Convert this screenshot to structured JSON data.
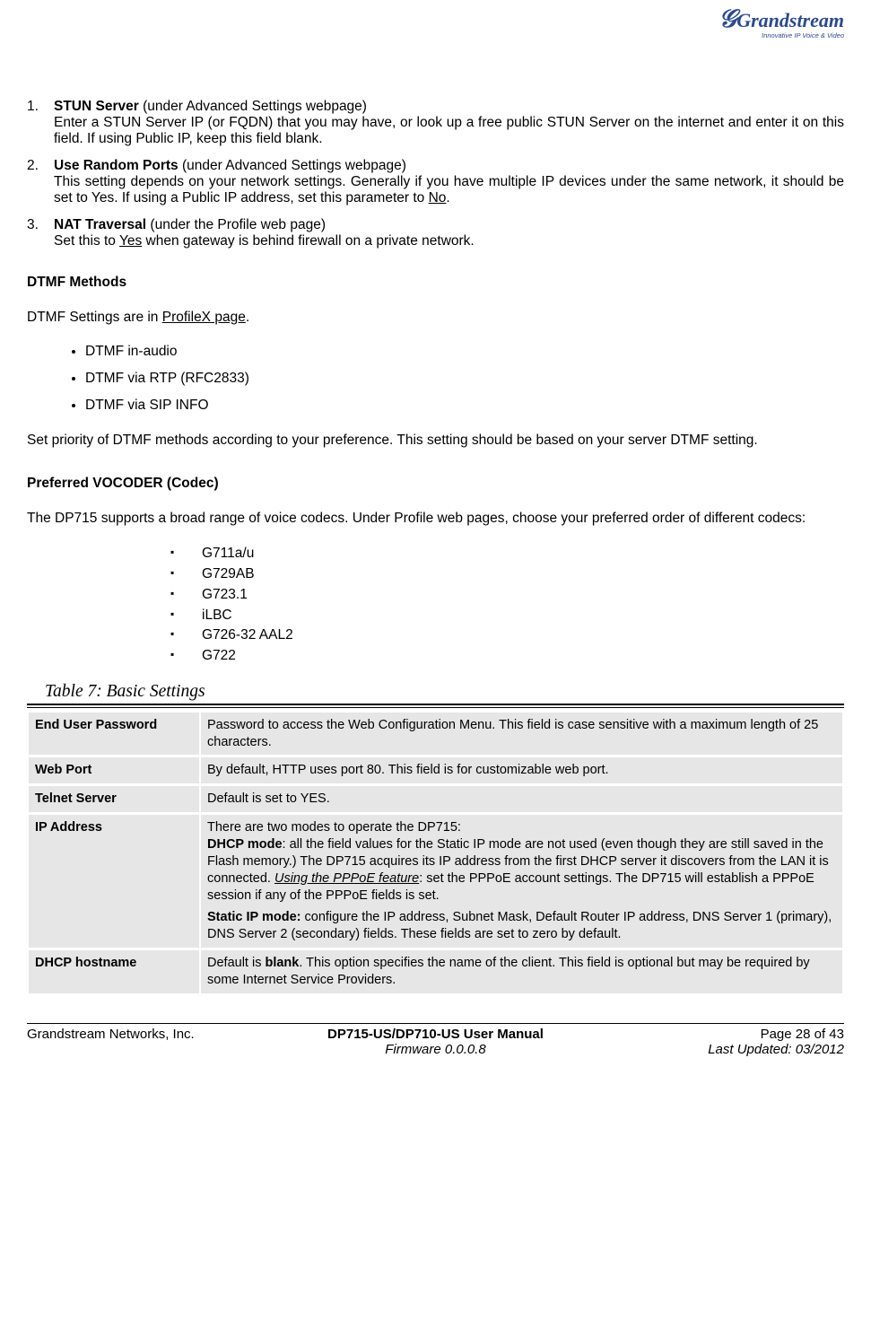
{
  "logo": {
    "brand": "Grandstream",
    "tagline": "Innovative IP Voice & Video"
  },
  "numbered": [
    {
      "num": "1.",
      "title": "STUN Server",
      "title_suffix": " (under Advanced Settings webpage)",
      "body": "Enter a STUN Server IP (or FQDN) that you may have, or look up a free public STUN Server on the internet and enter it on this field. If using Public IP, keep this field blank."
    },
    {
      "num": "2.",
      "title": "Use Random Ports",
      "title_suffix": " (under Advanced Settings webpage)",
      "body_pre": "This setting depends on your network settings.  Generally if you have multiple IP devices under the same network, it should be set to Yes. If using a Public IP address, set this parameter to ",
      "body_u": "No",
      "body_post": "."
    },
    {
      "num": "3.",
      "title": "NAT Traversal",
      "title_suffix": " (under the Profile web page)",
      "body_pre": "Set this to ",
      "body_u": "Yes",
      "body_post": " when gateway is behind firewall on a private network."
    }
  ],
  "dtmf": {
    "heading": "DTMF Methods",
    "intro_pre": "DTMF Settings are in ",
    "intro_u": "ProfileX page",
    "intro_post": ".",
    "methods": [
      "DTMF in-audio",
      "DTMF via RTP (RFC2833)",
      "DTMF via SIP INFO"
    ],
    "outro": "Set priority of DTMF methods according to your preference. This setting should be based on your server DTMF setting."
  },
  "vocoder": {
    "heading": "Preferred VOCODER (Codec)",
    "intro": "The DP715 supports a broad range of voice codecs.  Under Profile web pages, choose your preferred order of different codecs:",
    "codecs": [
      "G711a/u",
      "G729AB",
      "G723.1",
      "iLBC",
      "G726-32 AAL2",
      "G722"
    ]
  },
  "table": {
    "caption": "Table 7:  Basic Settings",
    "rows": [
      {
        "label": "End User Password",
        "desc": "Password to access the Web Configuration Menu. This field is case sensitive with a maximum length of 25 characters."
      },
      {
        "label": "Web Port",
        "desc": "By default, HTTP uses port 80.  This field is for customizable web port."
      },
      {
        "label": "Telnet Server",
        "desc": "Default is set to YES."
      },
      {
        "label": "IP Address",
        "ip_intro": "There are two modes to operate the DP715:",
        "ip_dhcp_label": "DHCP mode",
        "ip_dhcp_text": ": all the field values for the Static IP mode are not used (even though they are still saved in the Flash memory.) The DP715 acquires its IP address from the first DHCP server it discovers from the LAN it is connected.  ",
        "ip_pppoe_label": "Using the PPPoE feature",
        "ip_pppoe_text": ": set the PPPoE account settings. The DP715 will establish a PPPoE session if any of the PPPoE fields is set.",
        "ip_static_label": "Static IP mode:",
        "ip_static_text": "  configure the IP address, Subnet Mask, Default Router IP address, DNS Server 1 (primary), DNS Server 2 (secondary) fields. These fields are set to zero by default."
      },
      {
        "label": "DHCP hostname",
        "dhcp_pre": "Default is ",
        "dhcp_bold": "blank",
        "dhcp_post": ". This option specifies the name of the client. This field is optional but may be required by some Internet Service Providers."
      }
    ]
  },
  "footer": {
    "company": "Grandstream Networks, Inc.",
    "manual": "DP715-US/DP710-US User Manual",
    "firmware": "Firmware 0.0.0.8",
    "page": "Page 28 of 43",
    "updated": "Last Updated:  03/2012"
  }
}
